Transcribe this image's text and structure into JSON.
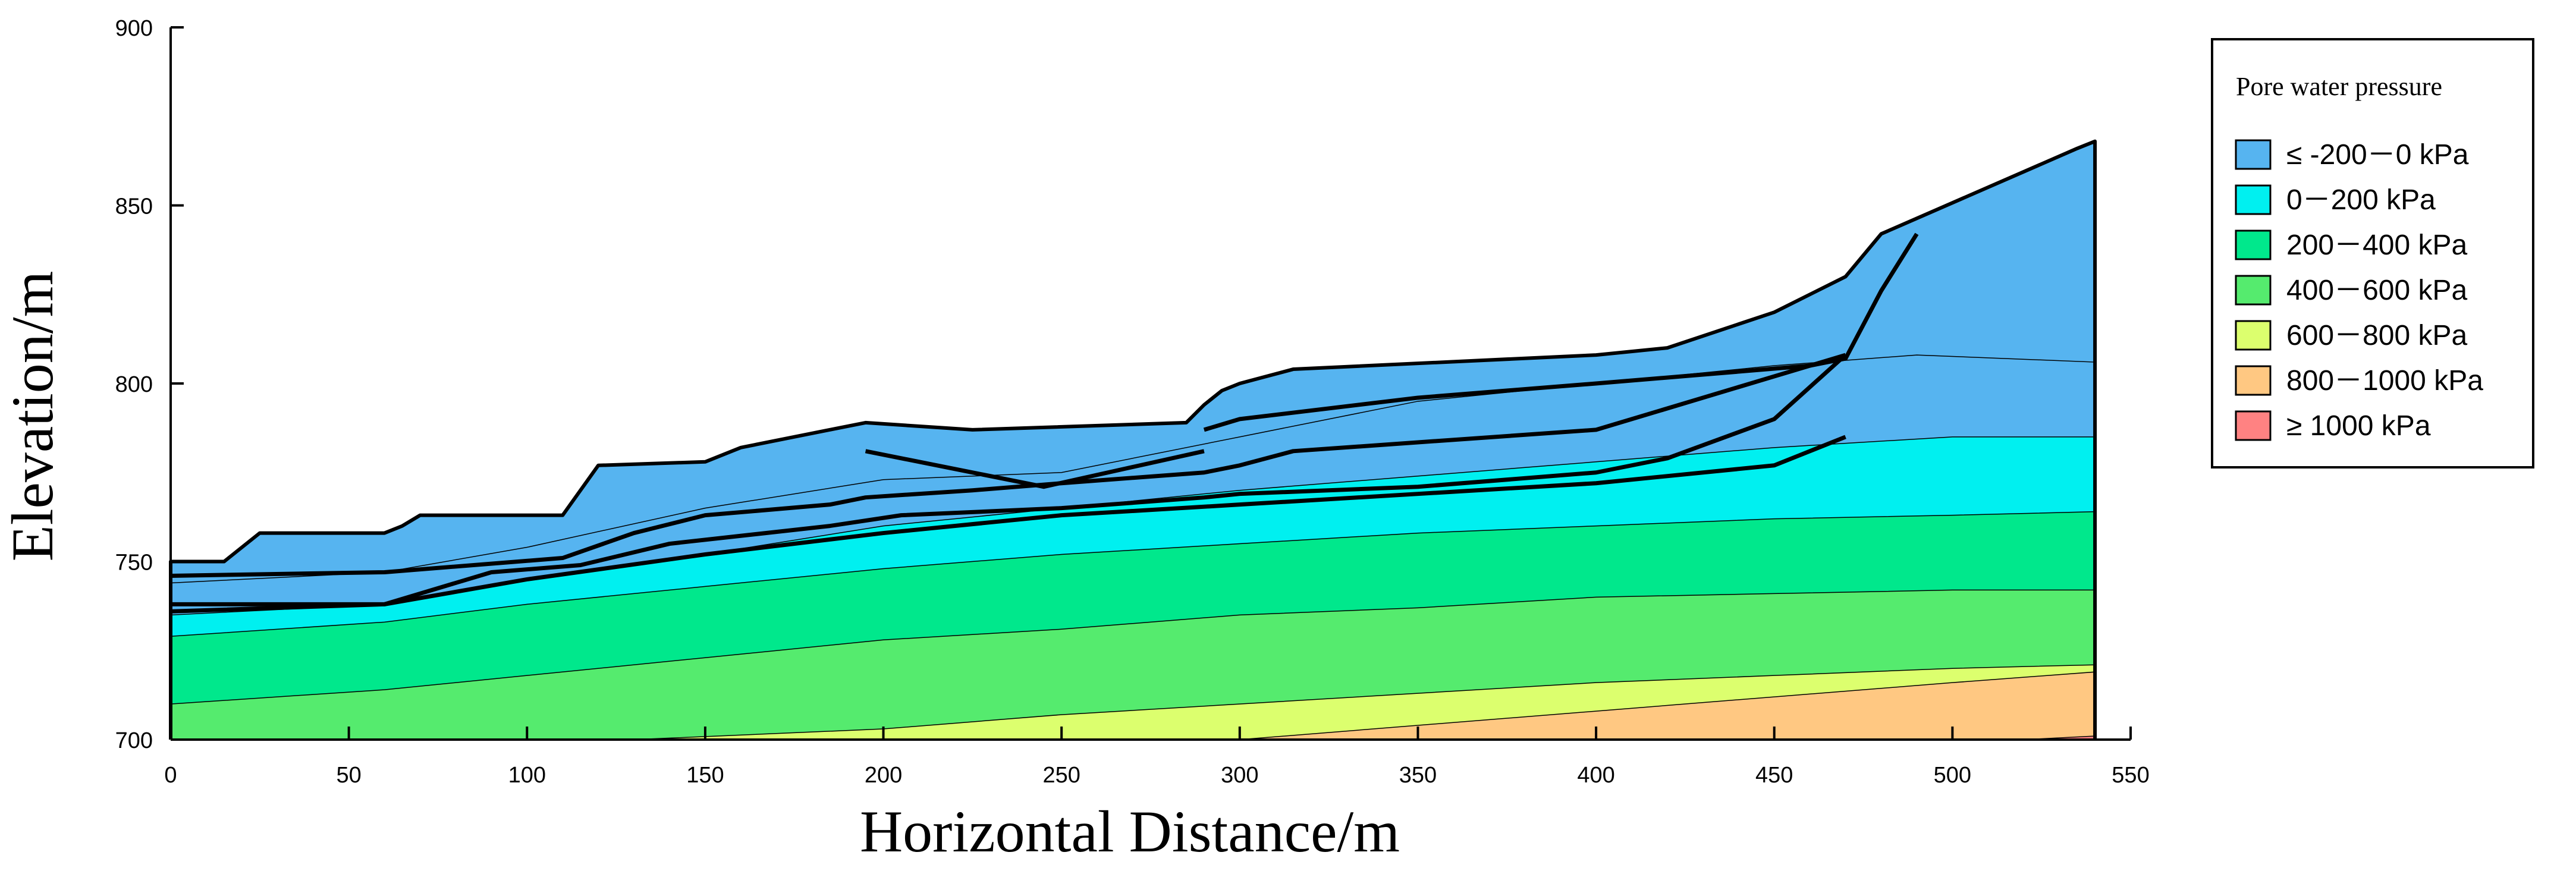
{
  "chart_data": {
    "type": "area",
    "title": "",
    "xlabel": "Horizontal Distance/m",
    "ylabel": "Elevation/m",
    "xlim": [
      0,
      550
    ],
    "ylim": [
      700,
      900
    ],
    "x_ticks": [
      0,
      50,
      100,
      150,
      200,
      250,
      300,
      350,
      400,
      450,
      500,
      550
    ],
    "y_ticks": [
      700,
      750,
      800,
      850,
      900
    ],
    "grid": false,
    "legend": {
      "title": "Pore water pressure",
      "placement": "right",
      "entries": [
        {
          "label": "≤ -200－0 kPa",
          "color": "#56B4F0"
        },
        {
          "label": "0－200 kPa",
          "color": "#00F0F0"
        },
        {
          "label": "200－400 kPa",
          "color": "#00E88C"
        },
        {
          "label": "400－600 kPa",
          "color": "#55EB6E"
        },
        {
          "label": "600－800 kPa",
          "color": "#DCFF6E"
        },
        {
          "label": "800－1000  kPa",
          "color": "#FFC882"
        },
        {
          "label": "≥ 1000  kPa",
          "color": "#FF8282"
        }
      ]
    },
    "surface": {
      "x": [
        0,
        15,
        25,
        60,
        65,
        70,
        110,
        120,
        150,
        160,
        185,
        195,
        225,
        285,
        290,
        295,
        300,
        315,
        400,
        420,
        450,
        470,
        480,
        535,
        540
      ],
      "y": [
        750,
        750,
        758,
        758,
        760,
        763,
        763,
        777,
        778,
        782,
        787,
        789,
        787,
        789,
        794,
        798,
        800,
        804,
        808,
        810,
        820,
        830,
        842,
        866,
        868
      ]
    },
    "series": [
      {
        "color": "#56B4F0",
        "x": [
          0,
          60,
          100,
          150,
          200,
          250,
          300,
          350,
          400,
          450,
          490,
          540
        ],
        "y": [
          744,
          747,
          754,
          765,
          773,
          775,
          785,
          795,
          800,
          805,
          808,
          806
        ]
      },
      {
        "color": "#00F0F0",
        "x": [
          0,
          60,
          100,
          150,
          200,
          250,
          300,
          350,
          400,
          450,
          500,
          540
        ],
        "y": [
          735,
          738,
          745,
          752,
          760,
          765,
          770,
          774,
          778,
          782,
          785,
          785
        ]
      },
      {
        "color": "#00E88C",
        "x": [
          0,
          60,
          100,
          150,
          200,
          250,
          300,
          350,
          400,
          450,
          500,
          540
        ],
        "y": [
          729,
          733,
          738,
          743,
          748,
          752,
          755,
          758,
          760,
          762,
          763,
          764
        ]
      },
      {
        "color": "#55EB6E",
        "x": [
          0,
          60,
          100,
          150,
          200,
          250,
          300,
          350,
          400,
          450,
          500,
          540
        ],
        "y": [
          710,
          714,
          718,
          723,
          728,
          731,
          735,
          737,
          740,
          741,
          742,
          742
        ]
      },
      {
        "color": "#DCFF6E",
        "x": [
          130,
          200,
          250,
          300,
          350,
          400,
          450,
          500,
          540
        ],
        "y": [
          700,
          703,
          707,
          710,
          713,
          716,
          718,
          720,
          721
        ]
      },
      {
        "color": "#FFC882",
        "x": [
          300,
          350,
          400,
          450,
          500,
          540
        ],
        "y": [
          700,
          704,
          708,
          712,
          716,
          719
        ]
      },
      {
        "color": "#FF8282",
        "x": [
          520,
          540
        ],
        "y": [
          700,
          701
        ]
      }
    ],
    "boundaries": [
      {
        "x": [
          0,
          60,
          110,
          130,
          150,
          185,
          195,
          225,
          250,
          290,
          300,
          315,
          400,
          470
        ],
        "y": [
          746,
          747,
          751,
          758,
          763,
          766,
          768,
          770,
          772,
          775,
          777,
          781,
          787,
          808
        ]
      },
      {
        "x": [
          0,
          60,
          90,
          115,
          140,
          185,
          205,
          250,
          290,
          300,
          350,
          400,
          420,
          450,
          470
        ],
        "y": [
          738,
          738,
          747,
          749,
          755,
          760,
          763,
          765,
          768,
          769,
          771,
          775,
          779,
          790,
          808
        ]
      },
      {
        "x": [
          0,
          60,
          100,
          150,
          200,
          250,
          300,
          350,
          400,
          450,
          470
        ],
        "y": [
          736,
          738,
          745,
          752,
          758,
          763,
          766,
          769,
          772,
          777,
          785
        ]
      },
      {
        "x": [
          195,
          245,
          290
        ],
        "y": [
          781,
          771,
          781
        ]
      },
      {
        "x": [
          290,
          300,
          350,
          400,
          460,
          470,
          480,
          490
        ],
        "y": [
          787,
          790,
          796,
          800,
          805,
          807,
          826,
          842
        ]
      }
    ]
  }
}
